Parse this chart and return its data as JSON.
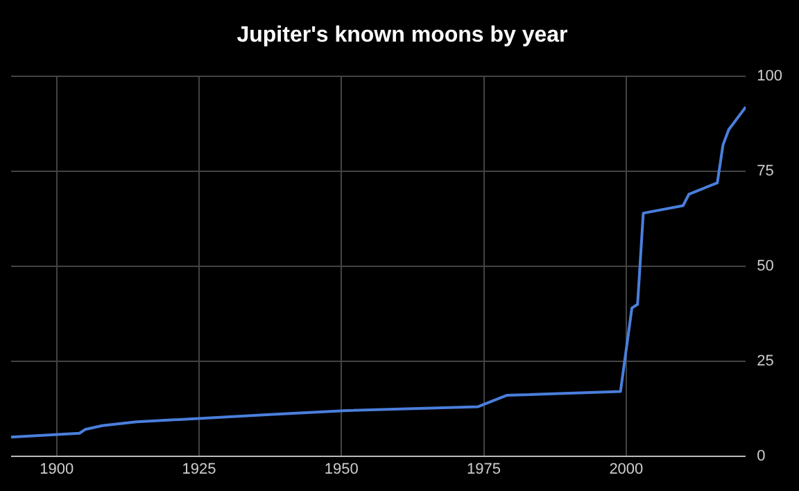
{
  "chart_data": {
    "type": "line",
    "title": "Jupiter's known moons by year",
    "x": [
      1892,
      1904,
      1905,
      1908,
      1914,
      1938,
      1951,
      1974,
      1979,
      1999,
      2001,
      2002,
      2003,
      2010,
      2011,
      2016,
      2017,
      2018,
      2021
    ],
    "series": [
      {
        "color": "#4a7fdc",
        "values": [
          5,
          6,
          7,
          8,
          9,
          11,
          12,
          13,
          16,
          17,
          39,
          40,
          64,
          66,
          69,
          72,
          82,
          86,
          92
        ]
      }
    ],
    "xlim": [
      1892,
      2021
    ],
    "xticks": [
      1900,
      1925,
      1950,
      1975,
      2000
    ],
    "ylim": [
      0,
      100
    ],
    "yticks": [
      0,
      25,
      50,
      75,
      100
    ],
    "grid": true,
    "legend": false,
    "marker": "none",
    "line_style": "solid"
  }
}
